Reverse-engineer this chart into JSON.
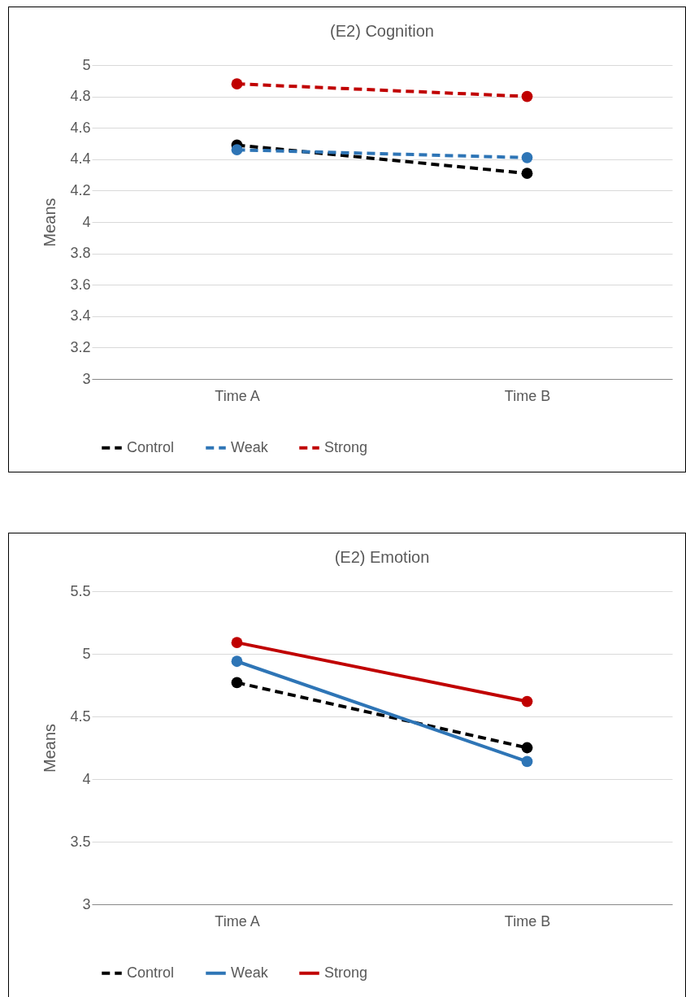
{
  "chart_data": [
    {
      "type": "line",
      "title": "(E2) Cognition",
      "ylabel": "Means",
      "categories": [
        "Time A",
        "Time B"
      ],
      "ylim": [
        3,
        5
      ],
      "yticks": [
        3,
        3.2,
        3.4,
        3.6,
        3.8,
        4,
        4.2,
        4.4,
        4.6,
        4.8,
        5
      ],
      "grid": "y",
      "legend": "bottom",
      "marker": "circle",
      "series": [
        {
          "name": "Control",
          "color": "#000000",
          "line_style": "dashed",
          "values": [
            4.49,
            4.31
          ]
        },
        {
          "name": "Weak",
          "color": "#2e75b6",
          "line_style": "dashed",
          "values": [
            4.46,
            4.41
          ]
        },
        {
          "name": "Strong",
          "color": "#c00000",
          "line_style": "dashed",
          "values": [
            4.88,
            4.8
          ]
        }
      ]
    },
    {
      "type": "line",
      "title": "(E2) Emotion",
      "ylabel": "Means",
      "categories": [
        "Time A",
        "Time B"
      ],
      "ylim": [
        3,
        5.5
      ],
      "yticks": [
        3,
        3.5,
        4,
        4.5,
        5,
        5.5
      ],
      "grid": "y",
      "legend": "bottom",
      "marker": "circle",
      "series": [
        {
          "name": "Control",
          "color": "#000000",
          "line_style": "dashed",
          "values": [
            4.77,
            4.25
          ]
        },
        {
          "name": "Weak",
          "color": "#2e75b6",
          "line_style": "solid",
          "values": [
            4.94,
            4.14
          ]
        },
        {
          "name": "Strong",
          "color": "#c00000",
          "line_style": "solid",
          "values": [
            5.09,
            4.62
          ]
        }
      ]
    }
  ]
}
